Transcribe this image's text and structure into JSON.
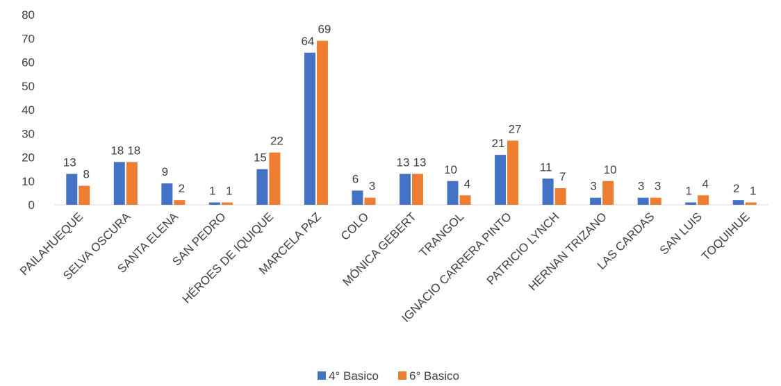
{
  "chart_data": {
    "type": "bar",
    "categories": [
      "PAILAHUEQUE",
      "SELVA OSCURA",
      "SANTA ELENA",
      "SAN PEDRO",
      "HÉROES DE IQUIQUE",
      "MARCELA PAZ",
      "COLO",
      "MÓNICA GEBERT",
      "TRANGOL",
      "IGNACIO CARRERA PINTO",
      "PATRICIO LYNCH",
      "HERNAN TRIZANO",
      "LAS CARDAS",
      "SAN LUIS",
      "TOQUIHUE"
    ],
    "series": [
      {
        "name": "4° Basico",
        "color": "#4472C4",
        "values": [
          13,
          18,
          9,
          1,
          15,
          64,
          6,
          13,
          10,
          21,
          11,
          3,
          3,
          1,
          2
        ]
      },
      {
        "name": "6° Basico",
        "color": "#ED7D31",
        "values": [
          8,
          18,
          2,
          1,
          22,
          69,
          3,
          13,
          4,
          27,
          7,
          10,
          3,
          4,
          1
        ]
      }
    ],
    "title": "",
    "xlabel": "",
    "ylabel": "",
    "ylim": [
      0,
      80
    ],
    "yticks": [
      0,
      10,
      20,
      30,
      40,
      50,
      60,
      70,
      80
    ],
    "grid": false,
    "data_labels": true,
    "legend_position": "bottom"
  }
}
